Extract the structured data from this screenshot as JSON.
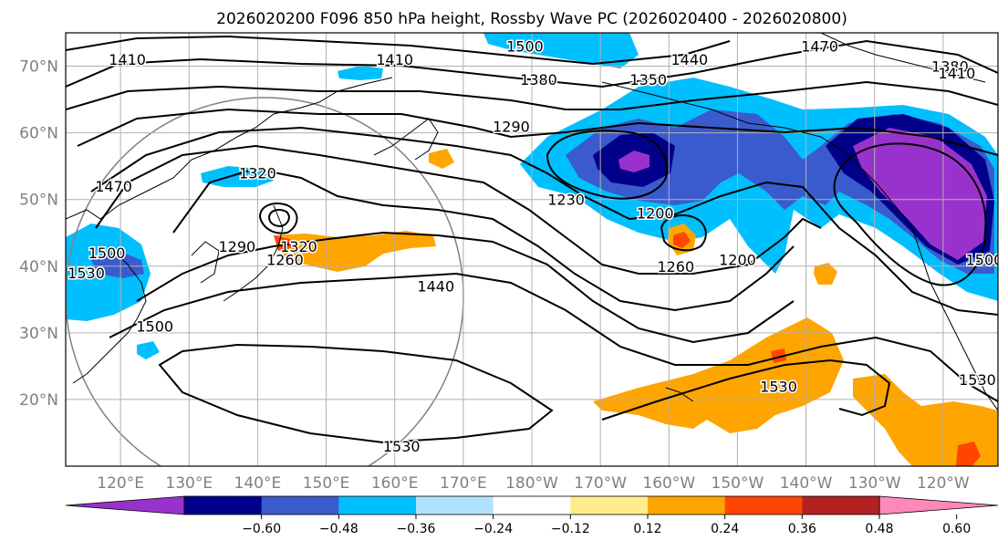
{
  "title": "2026020200 F096 850 hPa height, Rossby Wave PC (2026020400 - 2026020800)",
  "map": {
    "lon_range": [
      112,
      248
    ],
    "lat_range": [
      10,
      75
    ],
    "lat_ticks": [
      {
        "value": 70,
        "label": "70°N"
      },
      {
        "value": 60,
        "label": "60°N"
      },
      {
        "value": 50,
        "label": "50°N"
      },
      {
        "value": 40,
        "label": "40°N"
      },
      {
        "value": 30,
        "label": "30°N"
      },
      {
        "value": 20,
        "label": "20°N"
      }
    ],
    "lon_ticks": [
      {
        "value": 120,
        "label": "120°E"
      },
      {
        "value": 130,
        "label": "130°E"
      },
      {
        "value": 140,
        "label": "140°E"
      },
      {
        "value": 150,
        "label": "150°E"
      },
      {
        "value": 160,
        "label": "160°E"
      },
      {
        "value": 170,
        "label": "170°E"
      },
      {
        "value": 180,
        "label": "180°W"
      },
      {
        "value": 190,
        "label": "170°W"
      },
      {
        "value": 200,
        "label": "160°W"
      },
      {
        "value": 210,
        "label": "150°W"
      },
      {
        "value": 220,
        "label": "140°W"
      },
      {
        "value": 230,
        "label": "130°W"
      },
      {
        "value": 240,
        "label": "120°W"
      }
    ],
    "grid": true,
    "contour_labels": [
      {
        "text": "1500",
        "lon": 179,
        "lat": 73
      },
      {
        "text": "1470",
        "lon": 222,
        "lat": 73
      },
      {
        "text": "1410",
        "lon": 160,
        "lat": 71
      },
      {
        "text": "1440",
        "lon": 203,
        "lat": 71
      },
      {
        "text": "1410",
        "lon": 121,
        "lat": 71
      },
      {
        "text": "1380",
        "lon": 241,
        "lat": 70
      },
      {
        "text": "1410",
        "lon": 242,
        "lat": 69
      },
      {
        "text": "1380",
        "lon": 181,
        "lat": 68
      },
      {
        "text": "1350",
        "lon": 197,
        "lat": 68
      },
      {
        "text": "1290",
        "lon": 177,
        "lat": 61
      },
      {
        "text": "1320",
        "lon": 140,
        "lat": 54
      },
      {
        "text": "1470",
        "lon": 119,
        "lat": 52
      },
      {
        "text": "1230",
        "lon": 185,
        "lat": 50
      },
      {
        "text": "1200",
        "lon": 198,
        "lat": 48
      },
      {
        "text": "1290",
        "lon": 137,
        "lat": 43
      },
      {
        "text": "1320",
        "lon": 146,
        "lat": 43
      },
      {
        "text": "1260",
        "lon": 144,
        "lat": 41
      },
      {
        "text": "1500",
        "lon": 118,
        "lat": 42
      },
      {
        "text": "1530",
        "lon": 115,
        "lat": 39
      },
      {
        "text": "1260",
        "lon": 201,
        "lat": 40
      },
      {
        "text": "1200",
        "lon": 210,
        "lat": 41
      },
      {
        "text": "1500",
        "lon": 246,
        "lat": 41
      },
      {
        "text": "1440",
        "lon": 166,
        "lat": 37
      },
      {
        "text": "1500",
        "lon": 125,
        "lat": 31
      },
      {
        "text": "1530",
        "lon": 216,
        "lat": 22
      },
      {
        "text": "1530",
        "lon": 245,
        "lat": 23
      },
      {
        "text": "1530",
        "lon": 161,
        "lat": 13
      }
    ]
  },
  "colorbar": {
    "colors": [
      "#9932cc",
      "#00008b",
      "#3a5bcd",
      "#00bfff",
      "#b0e2ff",
      "#ffffff",
      "#ffec8b",
      "#ffa500",
      "#ff4500",
      "#b22222",
      "#ff88bb"
    ],
    "tick_labels": [
      "−0.60",
      "−0.48",
      "−0.36",
      "−0.24",
      "−0.12",
      "0.12",
      "0.24",
      "0.36",
      "0.48",
      "0.60"
    ]
  }
}
